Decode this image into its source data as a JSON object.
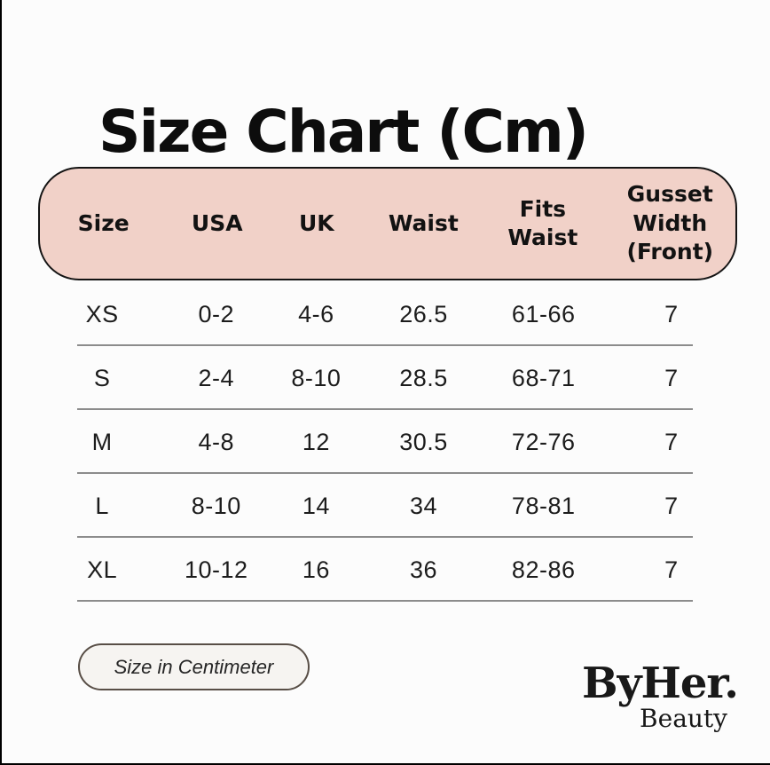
{
  "title": "Size Chart (Cm)",
  "colors": {
    "background": "#fcfcfc",
    "header_pink": "#f1d1c8",
    "header_border": "#141414",
    "row_divider": "#8c8c8c",
    "badge_background": "#f6f4f1",
    "badge_border": "#584e46",
    "text": "#141414"
  },
  "table": {
    "columns": [
      "Size",
      "USA",
      "UK",
      "Waist",
      "Fits\nWaist",
      "Gusset\nWidth\n(Front)"
    ],
    "rows": [
      [
        "XS",
        "0-2",
        "4-6",
        "26.5",
        "61-66",
        "7"
      ],
      [
        "S",
        "2-4",
        "8-10",
        "28.5",
        "68-71",
        "7"
      ],
      [
        "M",
        "4-8",
        "12",
        "30.5",
        "72-76",
        "7"
      ],
      [
        "L",
        "8-10",
        "14",
        "34",
        "78-81",
        "7"
      ],
      [
        "XL",
        "10-12",
        "16",
        "36",
        "82-86",
        "7"
      ]
    ]
  },
  "badge": {
    "label": "Size in Centimeter"
  },
  "logo": {
    "wordmark": "ByHer.",
    "tagline": "Beauty"
  },
  "chart_data": {
    "type": "table",
    "title": "Size Chart (Cm)",
    "unit": "cm",
    "columns": [
      "Size",
      "USA",
      "UK",
      "Waist",
      "Fits Waist",
      "Gusset Width (Front)"
    ],
    "rows": [
      [
        "XS",
        "0-2",
        "4-6",
        "26.5",
        "61-66",
        "7"
      ],
      [
        "S",
        "2-4",
        "8-10",
        "28.5",
        "68-71",
        "7"
      ],
      [
        "M",
        "4-8",
        "12",
        "30.5",
        "72-76",
        "7"
      ],
      [
        "L",
        "8-10",
        "14",
        "34",
        "78-81",
        "7"
      ],
      [
        "XL",
        "10-12",
        "16",
        "36",
        "82-86",
        "7"
      ]
    ]
  }
}
